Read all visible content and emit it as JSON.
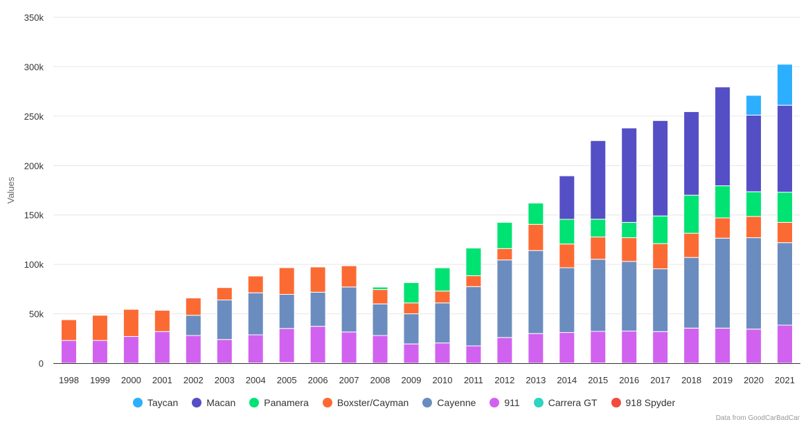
{
  "chart_data": {
    "type": "bar",
    "stacked": true,
    "title": "",
    "xlabel": "",
    "ylabel": "Values",
    "ylim": [
      0,
      350000
    ],
    "y_ticks": [
      0,
      50000,
      100000,
      150000,
      200000,
      250000,
      300000,
      350000
    ],
    "y_tick_labels": [
      "0",
      "50k",
      "100k",
      "150k",
      "200k",
      "250k",
      "300k",
      "350k"
    ],
    "grid": true,
    "legend_position": "bottom",
    "categories": [
      "1998",
      "1999",
      "2000",
      "2001",
      "2002",
      "2003",
      "2004",
      "2005",
      "2006",
      "2007",
      "2008",
      "2009",
      "2010",
      "2011",
      "2012",
      "2013",
      "2014",
      "2015",
      "2016",
      "2017",
      "2018",
      "2019",
      "2020",
      "2021"
    ],
    "series": [
      {
        "name": "918 Spyder",
        "color": "#f24a3d",
        "values": [
          0,
          0,
          0,
          0,
          0,
          0,
          0,
          0,
          0,
          0,
          0,
          0,
          0,
          0,
          0,
          0,
          100,
          200,
          0,
          0,
          0,
          0,
          0,
          0
        ]
      },
      {
        "name": "Carrera GT",
        "color": "#2dd4bf",
        "values": [
          0,
          0,
          0,
          0,
          0,
          0,
          200,
          650,
          350,
          100,
          0,
          0,
          0,
          0,
          0,
          0,
          0,
          0,
          0,
          0,
          0,
          0,
          0,
          0
        ]
      },
      {
        "name": "911",
        "color": "#d162f0",
        "values": [
          23000,
          23000,
          27000,
          32000,
          28000,
          24000,
          28500,
          34500,
          37000,
          31500,
          28000,
          19500,
          20500,
          17500,
          26000,
          30000,
          31000,
          32000,
          32500,
          32000,
          35500,
          35500,
          34500,
          38500
        ]
      },
      {
        "name": "Cayenne",
        "color": "#6b8cbe",
        "values": [
          0,
          0,
          0,
          0,
          20500,
          40000,
          42500,
          34500,
          34500,
          45500,
          32000,
          30500,
          40500,
          60000,
          78500,
          84000,
          65500,
          73000,
          70500,
          63500,
          71500,
          91000,
          92500,
          83500
        ]
      },
      {
        "name": "Boxster/Cayman",
        "color": "#fc6a33",
        "values": [
          21000,
          25500,
          27500,
          21500,
          17500,
          12500,
          17000,
          27000,
          25500,
          21500,
          14500,
          11000,
          12000,
          11000,
          11500,
          26500,
          24000,
          22500,
          24000,
          25500,
          24500,
          20500,
          21500,
          20500
        ]
      },
      {
        "name": "Panamera",
        "color": "#00e272",
        "values": [
          0,
          0,
          0,
          0,
          0,
          0,
          0,
          0,
          0,
          0,
          2500,
          20500,
          23500,
          28000,
          26500,
          21500,
          25000,
          18000,
          15500,
          28000,
          38500,
          32500,
          25000,
          30500
        ]
      },
      {
        "name": "Macan",
        "color": "#544fc5",
        "values": [
          0,
          0,
          0,
          0,
          0,
          0,
          0,
          0,
          0,
          0,
          0,
          0,
          0,
          0,
          0,
          0,
          44000,
          79500,
          95500,
          96500,
          84500,
          100000,
          77500,
          88000
        ]
      },
      {
        "name": "Taycan",
        "color": "#2caffe",
        "values": [
          0,
          0,
          0,
          0,
          0,
          0,
          0,
          0,
          0,
          0,
          0,
          0,
          0,
          0,
          0,
          0,
          0,
          0,
          0,
          0,
          0,
          0,
          20000,
          41500
        ]
      }
    ],
    "legend_order": [
      "Taycan",
      "Macan",
      "Panamera",
      "Boxster/Cayman",
      "Cayenne",
      "911",
      "Carrera GT",
      "918 Spyder"
    ]
  },
  "credit": "Data from GoodCarBadCar"
}
